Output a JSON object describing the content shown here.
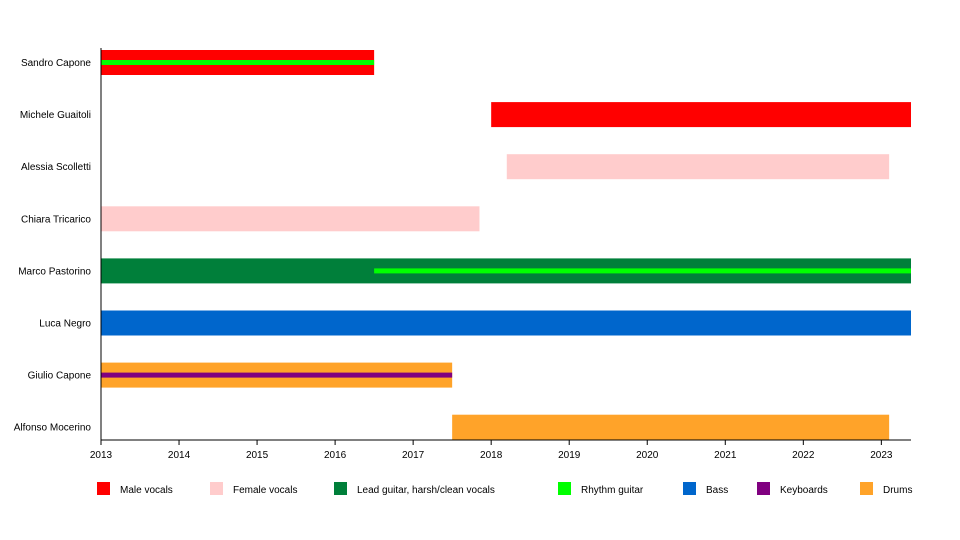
{
  "chart_data": {
    "type": "bar",
    "subtype": "timeline",
    "title": "",
    "xlabel": "",
    "ylabel": "",
    "xlim": [
      2013,
      2023.38
    ],
    "x_ticks": [
      "2013",
      "2014",
      "2015",
      "2016",
      "2017",
      "2018",
      "2019",
      "2020",
      "2021",
      "2022",
      "2023"
    ],
    "legend_position": "bottom",
    "roles": [
      {
        "key": "male",
        "label": "Male vocals",
        "color": "#ff0000"
      },
      {
        "key": "female",
        "label": "Female vocals",
        "color": "#ffcccc"
      },
      {
        "key": "lead",
        "label": "Lead guitar, harsh/clean vocals",
        "color": "#007f3a"
      },
      {
        "key": "rhythm",
        "label": "Rhythm guitar",
        "color": "#00ff00"
      },
      {
        "key": "bass",
        "label": "Bass",
        "color": "#0066cc"
      },
      {
        "key": "keys",
        "label": "Keyboards",
        "color": "#800080"
      },
      {
        "key": "drums",
        "label": "Drums",
        "color": "#ffa329"
      }
    ],
    "members": [
      {
        "name": "Sandro Capone",
        "bars": [
          {
            "role": "male",
            "start": 2013,
            "end": 2016.5
          }
        ],
        "lines": [
          {
            "role": "rhythm",
            "start": 2013,
            "end": 2016.5
          }
        ]
      },
      {
        "name": "Michele Guaitoli",
        "bars": [
          {
            "role": "male",
            "start": 2018.0,
            "end": 2023.38
          }
        ],
        "lines": []
      },
      {
        "name": "Alessia Scolletti",
        "bars": [
          {
            "role": "female",
            "start": 2018.2,
            "end": 2023.1
          }
        ],
        "lines": []
      },
      {
        "name": "Chiara Tricarico",
        "bars": [
          {
            "role": "female",
            "start": 2013,
            "end": 2017.85
          }
        ],
        "lines": []
      },
      {
        "name": "Marco Pastorino",
        "bars": [
          {
            "role": "lead",
            "start": 2013,
            "end": 2023.38
          }
        ],
        "lines": [
          {
            "role": "rhythm",
            "start": 2016.5,
            "end": 2023.38
          }
        ]
      },
      {
        "name": "Luca Negro",
        "bars": [
          {
            "role": "bass",
            "start": 2013,
            "end": 2023.38
          }
        ],
        "lines": []
      },
      {
        "name": "Giulio Capone",
        "bars": [
          {
            "role": "drums",
            "start": 2013,
            "end": 2017.5
          }
        ],
        "lines": [
          {
            "role": "keys",
            "start": 2013,
            "end": 2017.5
          }
        ]
      },
      {
        "name": "Alfonso Mocerino",
        "bars": [
          {
            "role": "drums",
            "start": 2017.5,
            "end": 2023.1
          }
        ],
        "lines": []
      }
    ]
  }
}
